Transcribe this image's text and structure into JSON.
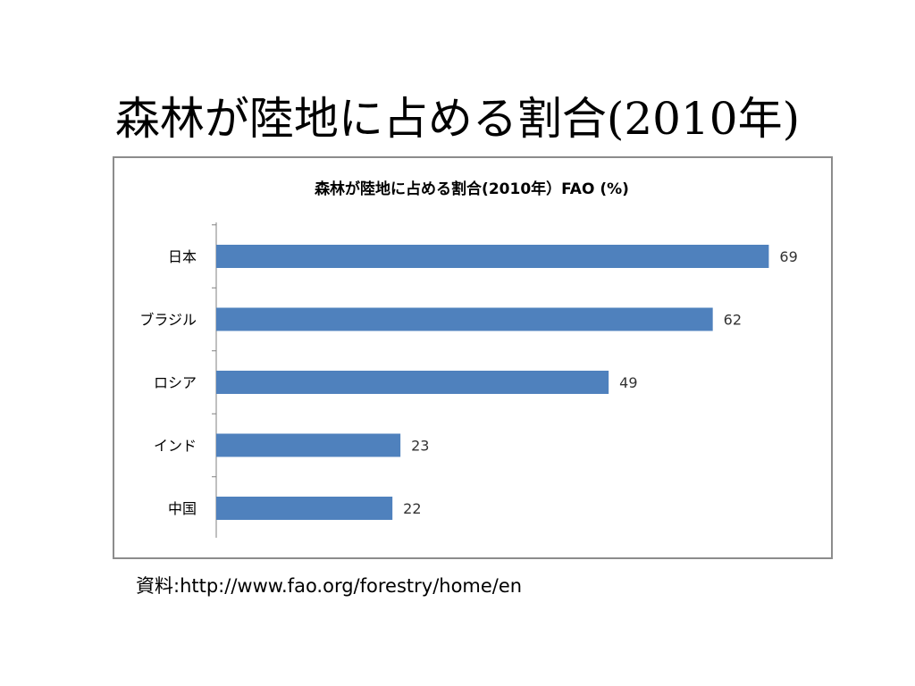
{
  "slide": {
    "title_main": "森林が陸地に占める割合",
    "title_year": "(2010年)",
    "source_label": "資料",
    "source_sep": ":",
    "source_url": "http://www.fao.org/forestry/home/en"
  },
  "colors": {
    "bar": "#4f81bd",
    "axis": "#808080",
    "frame": "#8c8c8c"
  },
  "chart_data": {
    "type": "bar",
    "orientation": "horizontal",
    "title": "森林が陸地に占める割合(2010年）FAO (%)",
    "categories": [
      "日本",
      "ブラジル",
      "ロシア",
      "インド",
      "中国"
    ],
    "values": [
      69,
      62,
      49,
      23,
      22
    ],
    "xlim": [
      0,
      80
    ],
    "grid": false,
    "legend": "none",
    "data_labels": true
  }
}
